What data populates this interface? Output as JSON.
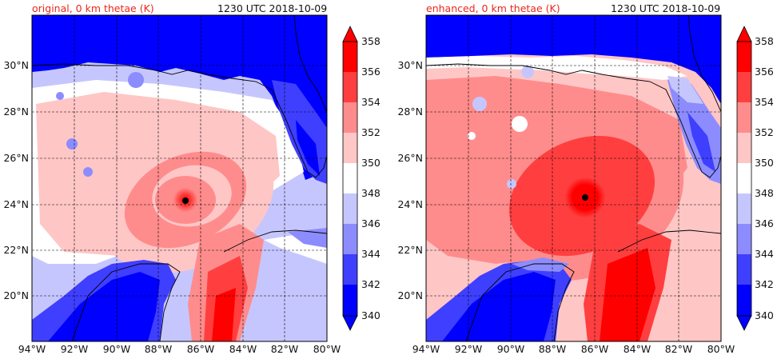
{
  "colors": {
    "red": "#e8281c",
    "scale": [
      "#0000ff",
      "#3f3fff",
      "#8c8cff",
      "#c6c6ff",
      "#ffffff",
      "#ffc6c6",
      "#ff8c8c",
      "#ff3f3f",
      "#ff0000"
    ],
    "storm_center": "#000000"
  },
  "panels": [
    {
      "title_left": "original, 0 km thetae (K)",
      "title_right": "1230 UTC 2018-10-09",
      "lat_labels": [
        "30°N",
        "28°N",
        "26°N",
        "24°N",
        "22°N",
        "20°N"
      ],
      "lon_labels": [
        "94°W",
        "92°W",
        "90°W",
        "88°W",
        "86°W",
        "84°W",
        "82°W",
        "80°W"
      ],
      "colorbar_labels": [
        "358",
        "356",
        "354",
        "352",
        "350",
        "348",
        "346",
        "344",
        "342",
        "340"
      ]
    },
    {
      "title_left": "enhanced, 0 km thetae (K)",
      "title_right": "1230 UTC 2018-10-09",
      "lat_labels": [
        "30°N",
        "28°N",
        "26°N",
        "24°N",
        "22°N",
        "20°N"
      ],
      "lon_labels": [
        "94°W",
        "92°W",
        "90°W",
        "88°W",
        "86°W",
        "84°W",
        "82°W",
        "80°W"
      ],
      "colorbar_labels": [
        "358",
        "356",
        "354",
        "352",
        "350",
        "348",
        "346",
        "344",
        "342",
        "340"
      ]
    }
  ]
}
